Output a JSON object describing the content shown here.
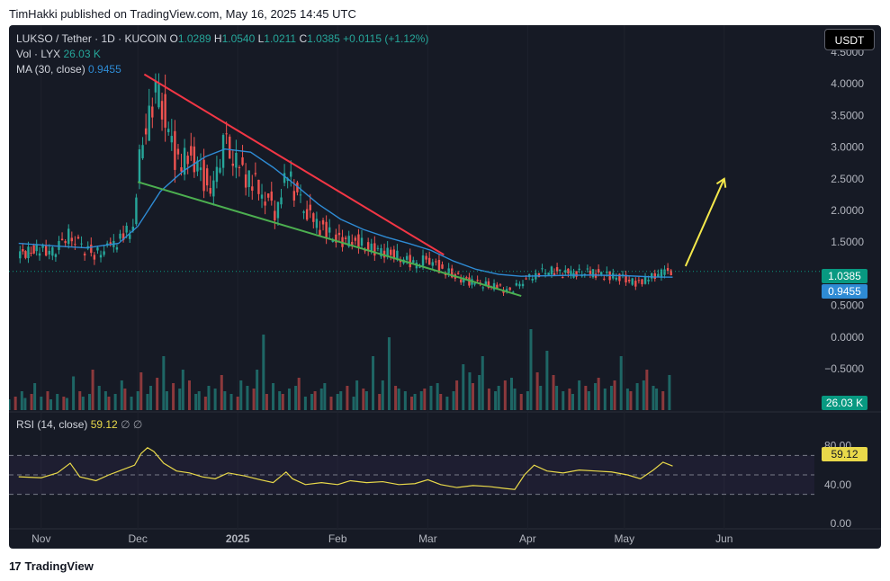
{
  "header": {
    "published_line": "TimHakki published on TradingView.com, May 16, 2025 14:45 UTC"
  },
  "legend": {
    "symbol": "LUKSO / Tether · 1D · KUCOIN",
    "o_label": "O",
    "o": "1.0289",
    "h_label": "H",
    "h": "1.0540",
    "l_label": "L",
    "l": "1.0211",
    "c_label": "C",
    "c": "1.0385",
    "change": "+0.0115 (+1.12%)",
    "vol_label": "Vol · LYX",
    "vol": "26.03 K",
    "ma_label": "MA (30, close)",
    "ma": "0.9455",
    "rsi_label": "RSI (14, close)",
    "rsi": "59.12",
    "rsi_extra": "∅ ∅"
  },
  "currency_button": "USDT",
  "price_tags": {
    "last": "1.0385",
    "ma": "0.9455",
    "volume": "26.03 K",
    "rsi": "59.12"
  },
  "footer": {
    "logo_text": "TradingView"
  },
  "colors": {
    "background": "#161a25",
    "up": "#26a69a",
    "down": "#ef5350",
    "ma": "#2e8bd4",
    "rsi": "#e9d94a",
    "resistance_line": "#f23645",
    "support_line": "#4caf50",
    "arrow": "#f4e84b"
  },
  "chart_data": [
    {
      "type": "candlestick",
      "title": "LUKSO / Tether · 1D · KUCOIN",
      "y_ticks": [
        "4.5000",
        "4.0000",
        "3.5000",
        "3.0000",
        "2.5000",
        "2.0000",
        "1.5000",
        "1.0000",
        "0.5000",
        "0.0000",
        "−0.5000"
      ],
      "x_ticks": [
        "Nov",
        "Dec",
        "2025",
        "Feb",
        "Mar",
        "Apr",
        "May",
        "Jun"
      ],
      "ylim": [
        -1.0,
        4.6
      ],
      "series": [
        {
          "name": "MA (30, close)",
          "points": [
            [
              "2024-10-25",
              1.48
            ],
            [
              "2024-11-05",
              1.44
            ],
            [
              "2024-11-15",
              1.41
            ],
            [
              "2024-11-25",
              1.48
            ],
            [
              "2024-12-01",
              1.75
            ],
            [
              "2024-12-08",
              2.3
            ],
            [
              "2024-12-15",
              2.62
            ],
            [
              "2024-12-22",
              2.85
            ],
            [
              "2024-12-28",
              2.97
            ],
            [
              "2025-01-05",
              2.92
            ],
            [
              "2025-01-12",
              2.68
            ],
            [
              "2025-01-19",
              2.4
            ],
            [
              "2025-01-26",
              2.1
            ],
            [
              "2025-02-02",
              1.86
            ],
            [
              "2025-02-09",
              1.7
            ],
            [
              "2025-02-16",
              1.58
            ],
            [
              "2025-02-23",
              1.48
            ],
            [
              "2025-03-02",
              1.37
            ],
            [
              "2025-03-09",
              1.2
            ],
            [
              "2025-03-16",
              1.07
            ],
            [
              "2025-03-23",
              0.99
            ],
            [
              "2025-03-30",
              0.96
            ],
            [
              "2025-04-08",
              0.97
            ],
            [
              "2025-04-20",
              0.98
            ],
            [
              "2025-05-01",
              0.97
            ],
            [
              "2025-05-10",
              0.95
            ],
            [
              "2025-05-16",
              0.9455
            ]
          ]
        },
        {
          "name": "Close",
          "points": [
            [
              "2024-10-25",
              1.3
            ],
            [
              "2024-10-31",
              1.38
            ],
            [
              "2024-11-05",
              1.35
            ],
            [
              "2024-11-10",
              1.62
            ],
            [
              "2024-11-13",
              1.45
            ],
            [
              "2024-11-18",
              1.3
            ],
            [
              "2024-11-22",
              1.4
            ],
            [
              "2024-11-26",
              1.55
            ],
            [
              "2024-11-30",
              1.75
            ],
            [
              "2024-12-02",
              2.9
            ],
            [
              "2024-12-04",
              3.3
            ],
            [
              "2024-12-07",
              3.9
            ],
            [
              "2024-12-10",
              3.4
            ],
            [
              "2024-12-14",
              2.7
            ],
            [
              "2024-12-18",
              2.9
            ],
            [
              "2024-12-22",
              2.5
            ],
            [
              "2024-12-25",
              2.3
            ],
            [
              "2024-12-28",
              3.1
            ],
            [
              "2025-01-01",
              2.7
            ],
            [
              "2025-01-05",
              2.5
            ],
            [
              "2025-01-09",
              2.3
            ],
            [
              "2025-01-13",
              2.0
            ],
            [
              "2025-01-17",
              2.6
            ],
            [
              "2025-01-20",
              2.2
            ],
            [
              "2025-01-24",
              1.85
            ],
            [
              "2025-01-28",
              1.7
            ],
            [
              "2025-02-02",
              1.5
            ],
            [
              "2025-02-06",
              1.55
            ],
            [
              "2025-02-11",
              1.4
            ],
            [
              "2025-02-16",
              1.35
            ],
            [
              "2025-02-21",
              1.25
            ],
            [
              "2025-02-26",
              1.15
            ],
            [
              "2025-03-01",
              1.25
            ],
            [
              "2025-03-05",
              1.1
            ],
            [
              "2025-03-10",
              0.95
            ],
            [
              "2025-03-16",
              0.85
            ],
            [
              "2025-03-22",
              0.8
            ],
            [
              "2025-03-27",
              0.72
            ],
            [
              "2025-03-30",
              0.85
            ],
            [
              "2025-04-03",
              0.98
            ],
            [
              "2025-04-08",
              1.05
            ],
            [
              "2025-04-14",
              1.0
            ],
            [
              "2025-04-20",
              1.02
            ],
            [
              "2025-04-26",
              0.98
            ],
            [
              "2025-05-01",
              0.92
            ],
            [
              "2025-05-05",
              0.86
            ],
            [
              "2025-05-09",
              0.92
            ],
            [
              "2025-05-13",
              1.02
            ],
            [
              "2025-05-16",
              1.0385
            ]
          ]
        }
      ],
      "trendlines": [
        {
          "name": "resistance",
          "from": [
            "2024-12-03",
            4.15
          ],
          "to": [
            "2025-03-06",
            1.3
          ]
        },
        {
          "name": "support",
          "from": [
            "2024-12-01",
            2.45
          ],
          "to": [
            "2025-03-30",
            0.65
          ]
        },
        {
          "name": "arrow",
          "from": [
            "2025-05-20",
            1.12
          ],
          "to": [
            "2025-06-01",
            2.5
          ]
        }
      ]
    },
    {
      "type": "bar",
      "title": "Vol · LYX",
      "values_k": [
        8,
        10,
        14,
        9,
        12,
        20,
        10,
        14,
        8,
        12,
        10,
        9,
        25,
        14,
        10,
        12,
        30,
        18,
        14,
        10,
        12,
        22,
        16,
        10,
        14,
        28,
        12,
        18,
        24,
        40,
        14,
        20,
        16,
        30,
        22,
        12,
        14,
        10,
        18,
        16,
        26,
        14,
        12,
        10,
        22,
        18,
        16,
        30,
        56,
        12,
        20,
        14,
        12,
        16,
        18,
        24,
        10,
        12,
        14,
        16,
        20,
        10,
        12,
        14,
        18,
        10,
        22,
        16,
        14,
        40,
        12,
        22,
        54,
        18,
        16,
        14,
        10,
        12,
        14,
        16,
        18,
        20,
        12,
        10,
        14,
        22,
        34,
        28,
        20,
        26,
        40,
        16,
        14,
        18,
        22,
        24,
        16,
        12,
        14,
        60,
        28,
        18,
        44,
        26,
        18,
        14,
        16,
        12,
        22,
        18,
        14,
        20,
        24,
        16,
        18,
        22,
        40,
        16,
        14,
        20,
        22,
        30,
        18,
        16,
        14,
        26.03
      ]
    },
    {
      "type": "line",
      "title": "RSI (14, close)",
      "y_ticks": [
        "80.00",
        "40.00",
        "0.00"
      ],
      "ylim": [
        0,
        100
      ],
      "bands": [
        30,
        50,
        70
      ],
      "series": [
        {
          "name": "RSI (14, close)",
          "points": [
            [
              "2024-10-25",
              48
            ],
            [
              "2024-11-01",
              47
            ],
            [
              "2024-11-06",
              52
            ],
            [
              "2024-11-10",
              62
            ],
            [
              "2024-11-13",
              48
            ],
            [
              "2024-11-18",
              44
            ],
            [
              "2024-11-22",
              50
            ],
            [
              "2024-11-26",
              55
            ],
            [
              "2024-11-30",
              60
            ],
            [
              "2024-12-02",
              72
            ],
            [
              "2024-12-04",
              78
            ],
            [
              "2024-12-06",
              74
            ],
            [
              "2024-12-09",
              62
            ],
            [
              "2024-12-13",
              54
            ],
            [
              "2024-12-17",
              52
            ],
            [
              "2024-12-21",
              48
            ],
            [
              "2024-12-25",
              46
            ],
            [
              "2024-12-29",
              52
            ],
            [
              "2025-01-03",
              49
            ],
            [
              "2025-01-08",
              45
            ],
            [
              "2025-01-12",
              42
            ],
            [
              "2025-01-16",
              53
            ],
            [
              "2025-01-18",
              46
            ],
            [
              "2025-01-22",
              40
            ],
            [
              "2025-01-27",
              42
            ],
            [
              "2025-02-01",
              40
            ],
            [
              "2025-02-05",
              44
            ],
            [
              "2025-02-10",
              42
            ],
            [
              "2025-02-15",
              43
            ],
            [
              "2025-02-20",
              40
            ],
            [
              "2025-02-25",
              41
            ],
            [
              "2025-03-01",
              45
            ],
            [
              "2025-03-05",
              40
            ],
            [
              "2025-03-10",
              37
            ],
            [
              "2025-03-15",
              39
            ],
            [
              "2025-03-20",
              38
            ],
            [
              "2025-03-25",
              36
            ],
            [
              "2025-03-28",
              35
            ],
            [
              "2025-03-31",
              50
            ],
            [
              "2025-04-03",
              60
            ],
            [
              "2025-04-07",
              54
            ],
            [
              "2025-04-12",
              52
            ],
            [
              "2025-04-17",
              55
            ],
            [
              "2025-04-22",
              54
            ],
            [
              "2025-04-27",
              53
            ],
            [
              "2025-05-02",
              50
            ],
            [
              "2025-05-06",
              46
            ],
            [
              "2025-05-10",
              55
            ],
            [
              "2025-05-13",
              63
            ],
            [
              "2025-05-16",
              59.12
            ]
          ]
        }
      ]
    }
  ]
}
